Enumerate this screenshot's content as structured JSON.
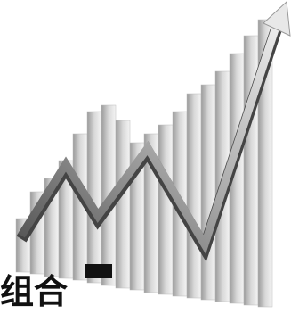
{
  "caption": "组合"
}
